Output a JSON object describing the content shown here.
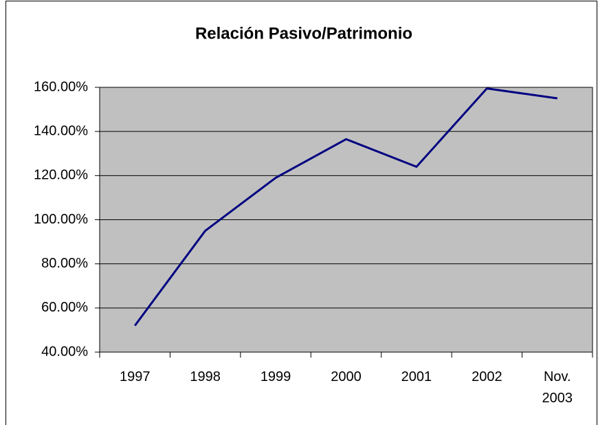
{
  "chart_data": {
    "type": "line",
    "title": "Relación Pasivo/Patrimonio",
    "categories": [
      "1997",
      "1998",
      "1999",
      "2000",
      "2001",
      "2002",
      "Nov. 2003"
    ],
    "series": [
      {
        "color": "#000080",
        "values": [
          52,
          95,
          119,
          136.5,
          124,
          159.5,
          155
        ]
      }
    ],
    "ylim": [
      40,
      160
    ],
    "yticks": [
      {
        "value": 40,
        "label": "40.00%"
      },
      {
        "value": 60,
        "label": "60.00%"
      },
      {
        "value": 80,
        "label": "80.00%"
      },
      {
        "value": 100,
        "label": "100.00%"
      },
      {
        "value": 120,
        "label": "120.00%"
      },
      {
        "value": 140,
        "label": "140.00%"
      },
      {
        "value": 160,
        "label": "160.00%"
      }
    ],
    "grid": true,
    "plot_background": "#c0c0c0"
  }
}
